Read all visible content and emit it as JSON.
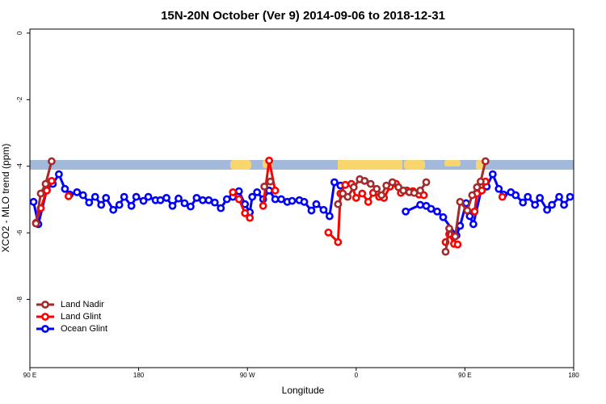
{
  "chart_data": {
    "type": "line",
    "title": "15N-20N October (Ver 9)   2014-09-06 to 2018-12-31",
    "x_label": "Longitude",
    "y_label": "XCO2 - MLO trend (ppm)",
    "xlim": [
      90,
      540
    ],
    "ylim": [
      -10.05,
      0.12
    ],
    "xticks": [
      {
        "value": 90,
        "label": "90 E"
      },
      {
        "value": 180,
        "label": "180"
      },
      {
        "value": 270,
        "label": "90 W"
      },
      {
        "value": 360,
        "label": "0"
      },
      {
        "value": 450,
        "label": "90 E"
      },
      {
        "value": 540,
        "label": "180"
      }
    ],
    "yticks": [
      0,
      -2,
      -4,
      -6,
      -8
    ],
    "legend": "bottom-left",
    "series": [
      {
        "name": "Land Nadir",
        "color": "#a52a2a",
        "x": [
          95,
          99,
          103,
          108,
          200,
          284,
          289,
          320,
          345,
          349,
          353,
          358,
          363,
          367,
          372,
          377,
          381,
          385,
          390,
          395,
          399,
          404,
          408,
          413,
          418,
          426,
          434,
          437,
          442,
          446,
          452,
          456,
          460,
          463,
          467
        ],
        "values": [
          -5.72,
          -4.82,
          -4.53,
          -3.85,
          null,
          -4.61,
          -4.46,
          null,
          -5.14,
          -4.82,
          -4.92,
          -4.63,
          -4.39,
          -4.44,
          -4.53,
          -4.68,
          -4.87,
          -4.58,
          -4.48,
          -4.63,
          -4.73,
          -4.78,
          -4.8,
          -4.73,
          -4.48,
          null,
          -6.57,
          -5.87,
          -6.11,
          -5.07,
          -5.33,
          -4.87,
          -4.63,
          -4.46,
          -3.85
        ]
      },
      {
        "name": "Land Glint",
        "color": "#ff0000",
        "x": [
          95,
          99,
          104,
          108,
          115,
          122,
          200,
          258,
          263,
          268,
          272,
          278,
          283,
          288,
          293,
          315,
          337,
          345,
          347,
          351,
          356,
          360,
          365,
          370,
          374,
          379,
          383,
          388,
          393,
          397,
          402,
          407,
          412,
          416,
          425,
          434,
          437,
          441,
          444,
          451,
          458,
          460,
          464,
          467,
          474,
          481
        ],
        "values": [
          -5.7,
          -5.26,
          -4.73,
          -4.44,
          null,
          -4.9,
          null,
          -4.78,
          -4.99,
          -5.41,
          -5.55,
          null,
          -5.19,
          -3.83,
          -4.73,
          null,
          -5.99,
          -6.28,
          -4.82,
          -4.56,
          -4.53,
          -4.95,
          -4.82,
          -5.07,
          -4.8,
          -4.92,
          -4.95,
          -4.61,
          -4.53,
          -4.8,
          -4.73,
          -4.75,
          -4.85,
          -4.87,
          null,
          -6.28,
          -6.04,
          -6.33,
          -6.35,
          null,
          -5.36,
          -4.82,
          -4.73,
          -4.46,
          null,
          -4.92
        ]
      },
      {
        "name": "Ocean Glint",
        "color": "#0000ff",
        "x": [
          93,
          97,
          104,
          109,
          114,
          119,
          123,
          129,
          134,
          139,
          144,
          149,
          153,
          159,
          164,
          168,
          174,
          178,
          184,
          188,
          194,
          198,
          203,
          208,
          213,
          218,
          223,
          228,
          233,
          238,
          243,
          248,
          253,
          258,
          263,
          268,
          272,
          274,
          278,
          283,
          288,
          293,
          298,
          303,
          307,
          313,
          317,
          323,
          327,
          333,
          338,
          342,
          347,
          375,
          401,
          413,
          418,
          422,
          427,
          432,
          443,
          446,
          451,
          454,
          457,
          464,
          468,
          473,
          478,
          482,
          488,
          492,
          498,
          502,
          508,
          512,
          518,
          522,
          528,
          532,
          537
        ],
        "values": [
          -5.07,
          -5.74,
          -4.7,
          -4.53,
          -4.24,
          -4.68,
          -4.85,
          -4.78,
          -4.87,
          -5.09,
          -4.92,
          -5.16,
          -4.95,
          -5.31,
          -5.16,
          -4.92,
          -5.19,
          -4.92,
          -5.04,
          -4.92,
          -5.02,
          -5.02,
          -4.95,
          -5.19,
          -4.97,
          -5.11,
          -5.21,
          -4.95,
          -5.02,
          -5.02,
          -5.09,
          -5.26,
          -4.99,
          -4.92,
          -4.75,
          -5.14,
          -5.38,
          -4.92,
          -4.78,
          -4.99,
          -4.73,
          -4.99,
          -4.99,
          -5.07,
          -5.04,
          -5.02,
          -5.07,
          -5.33,
          -5.14,
          -5.31,
          -5.5,
          -4.48,
          -4.58,
          null,
          -5.36,
          -5.16,
          -5.19,
          -5.28,
          -5.36,
          -5.53,
          -6.08,
          -5.79,
          -5.11,
          -5.5,
          -5.74,
          -4.63,
          -4.61,
          -4.24,
          -4.68,
          -4.85,
          -4.78,
          -4.87,
          -5.09,
          -4.92,
          -5.16,
          -4.95,
          -5.31,
          -5.16,
          -4.92,
          -5.16,
          -4.92
        ]
      }
    ]
  }
}
